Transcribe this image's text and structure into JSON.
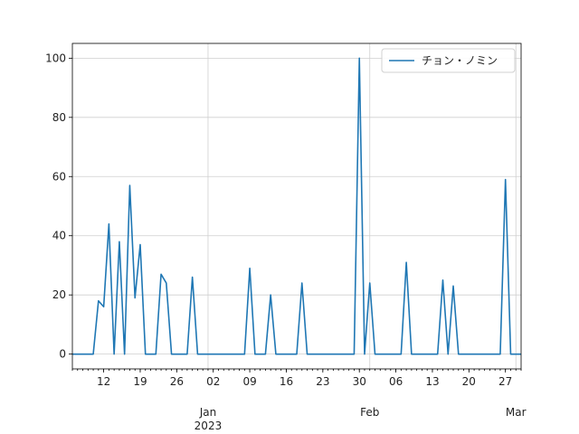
{
  "chart_data": {
    "type": "line",
    "x": [
      -26,
      -25,
      -24,
      -23,
      -22,
      -21,
      -20,
      -19,
      -18,
      -17,
      -16,
      -15,
      -14,
      -13,
      -12,
      -11,
      -10,
      -9,
      -8,
      -7,
      -6,
      -5,
      -4,
      -3,
      -2,
      -1,
      0,
      1,
      2,
      3,
      4,
      5,
      6,
      7,
      8,
      9,
      10,
      11,
      12,
      13,
      14,
      15,
      16,
      17,
      18,
      19,
      20,
      21,
      22,
      23,
      24,
      25,
      26,
      27,
      28,
      29,
      30,
      31,
      32,
      33,
      34,
      35,
      36,
      37,
      38,
      39,
      40,
      41,
      42,
      43,
      44,
      45,
      46,
      47,
      48,
      49,
      50,
      51,
      52,
      53,
      54,
      55,
      56,
      57,
      58,
      59,
      60
    ],
    "series": [
      {
        "name": "チョン・ノミン",
        "color": "#1f77b4",
        "values": [
          0,
          0,
          0,
          0,
          0,
          18,
          16,
          44,
          0,
          38,
          0,
          57,
          19,
          37,
          0,
          0,
          0,
          27,
          24,
          0,
          0,
          0,
          0,
          26,
          0,
          0,
          0,
          0,
          0,
          0,
          0,
          0,
          0,
          0,
          29,
          0,
          0,
          0,
          20,
          0,
          0,
          0,
          0,
          0,
          24,
          0,
          0,
          0,
          0,
          0,
          0,
          0,
          0,
          0,
          0,
          100,
          0,
          24,
          0,
          0,
          0,
          0,
          0,
          0,
          31,
          0,
          0,
          0,
          0,
          0,
          0,
          25,
          0,
          23,
          0,
          0,
          0,
          0,
          0,
          0,
          0,
          0,
          0,
          59,
          0,
          0,
          0
        ]
      }
    ],
    "xlim": [
      -26,
      60
    ],
    "xticks": [
      {
        "value": -20,
        "label": "12"
      },
      {
        "value": -13,
        "label": "19"
      },
      {
        "value": -6,
        "label": "26"
      },
      {
        "value": 0,
        "label": "Jan\n2023"
      },
      {
        "value": 1,
        "label": "02"
      },
      {
        "value": 8,
        "label": "09"
      },
      {
        "value": 15,
        "label": "16"
      },
      {
        "value": 22,
        "label": "23"
      },
      {
        "value": 29,
        "label": "30"
      },
      {
        "value": 31,
        "label": "Feb"
      },
      {
        "value": 36,
        "label": "06"
      },
      {
        "value": 43,
        "label": "13"
      },
      {
        "value": 50,
        "label": "20"
      },
      {
        "value": 57,
        "label": "27"
      },
      {
        "value": 59,
        "label": "Mar"
      }
    ],
    "ylim": [
      -5,
      105
    ],
    "yticks": [
      0,
      20,
      40,
      60,
      80,
      100
    ],
    "grid": true,
    "legend": "upper right"
  }
}
